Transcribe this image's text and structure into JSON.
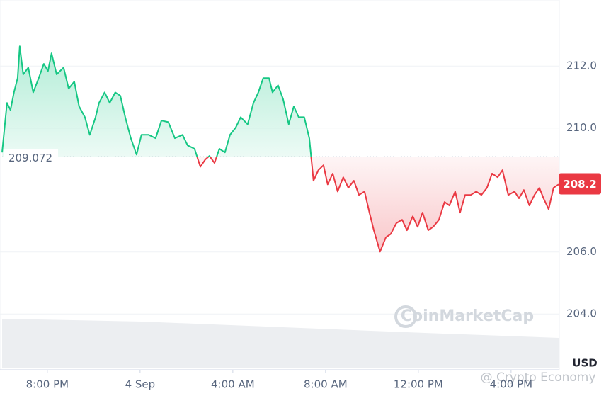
{
  "chart_data": {
    "type": "line",
    "x": [
      -1.95,
      -1.74,
      -1.59,
      -1.44,
      -1.28,
      -1.19,
      -1.04,
      -0.82,
      -0.61,
      -0.37,
      -0.15,
      0.03,
      0.18,
      0.4,
      0.7,
      0.92,
      1.16,
      1.37,
      1.62,
      1.83,
      2.08,
      2.23,
      2.47,
      2.69,
      2.93,
      3.15,
      3.36,
      3.6,
      3.85,
      4.06,
      4.37,
      4.67,
      4.92,
      5.22,
      5.5,
      5.83,
      6.05,
      6.35,
      6.6,
      6.81,
      6.99,
      7.21,
      7.42,
      7.66,
      7.88,
      8.12,
      8.34,
      8.64,
      8.89,
      9.1,
      9.31,
      9.56,
      9.71,
      9.95,
      10.17,
      10.41,
      10.63,
      10.84,
      11.08,
      11.3,
      11.48,
      11.69,
      11.91,
      12.09,
      12.31,
      12.52,
      12.76,
      12.98,
      13.22,
      13.44,
      13.68,
      13.89,
      14.08,
      14.35,
      14.6,
      14.81,
      15.05,
      15.3,
      15.51,
      15.76,
      15.97,
      16.18,
      16.43,
      16.64,
      16.89,
      17.13,
      17.34,
      17.59,
      17.8,
      18.02,
      18.26,
      18.5,
      18.72,
      18.96,
      19.18,
      19.42,
      19.63,
      19.88,
      20.15,
      20.34,
      20.55,
      20.79,
      21.01,
      21.22,
      21.4,
      21.62,
      21.83,
      22.05
    ],
    "values": [
      209.21,
      210.81,
      210.58,
      211.15,
      211.61,
      212.64,
      211.73,
      211.95,
      211.15,
      211.61,
      212.07,
      211.84,
      212.41,
      211.73,
      211.95,
      211.27,
      211.5,
      210.7,
      210.35,
      209.78,
      210.35,
      210.81,
      211.15,
      210.81,
      211.15,
      211.04,
      210.35,
      209.67,
      209.14,
      209.78,
      209.78,
      209.67,
      210.24,
      210.19,
      209.67,
      209.78,
      209.44,
      209.33,
      208.75,
      208.98,
      209.1,
      208.87,
      209.33,
      209.21,
      209.78,
      210.01,
      210.35,
      210.12,
      210.81,
      211.15,
      211.61,
      211.61,
      211.15,
      211.38,
      210.93,
      210.12,
      210.7,
      210.35,
      210.35,
      209.67,
      208.3,
      208.64,
      208.8,
      208.18,
      208.53,
      207.95,
      208.41,
      208.07,
      208.3,
      207.84,
      207.95,
      207.27,
      206.7,
      206.01,
      206.47,
      206.58,
      206.93,
      207.04,
      206.7,
      207.15,
      206.81,
      207.27,
      206.7,
      206.81,
      207.04,
      207.61,
      207.5,
      207.95,
      207.27,
      207.84,
      207.84,
      207.95,
      207.84,
      208.07,
      208.53,
      208.41,
      208.64,
      207.84,
      207.95,
      207.73,
      208.0,
      207.5,
      207.84,
      208.07,
      207.73,
      207.38,
      208.07,
      208.18
    ],
    "baseline": 209.072,
    "current_price": 208.2,
    "up_color": "#16c784",
    "down_color": "#ea3943",
    "xlim": [
      -1.95,
      22.05
    ],
    "xticks": [
      {
        "value": 0,
        "label": "8:00 PM"
      },
      {
        "value": 4,
        "label": "4 Sep"
      },
      {
        "value": 8,
        "label": "4:00 AM"
      },
      {
        "value": 12,
        "label": "8:00 AM"
      },
      {
        "value": 16,
        "label": "12:00 PM"
      },
      {
        "value": 20,
        "label": "4:00 PM"
      }
    ],
    "ylim": [
      202.45,
      214.13
    ],
    "yticks": [
      {
        "value": 204,
        "label": "204.0"
      },
      {
        "value": 206,
        "label": "206.0"
      },
      {
        "value": 210,
        "label": "210.0"
      },
      {
        "value": 212,
        "label": "212.0"
      }
    ],
    "currency": "USD",
    "grid": true,
    "watermark": "CoinMarketCap",
    "credit": "@ Crypto Economy"
  }
}
